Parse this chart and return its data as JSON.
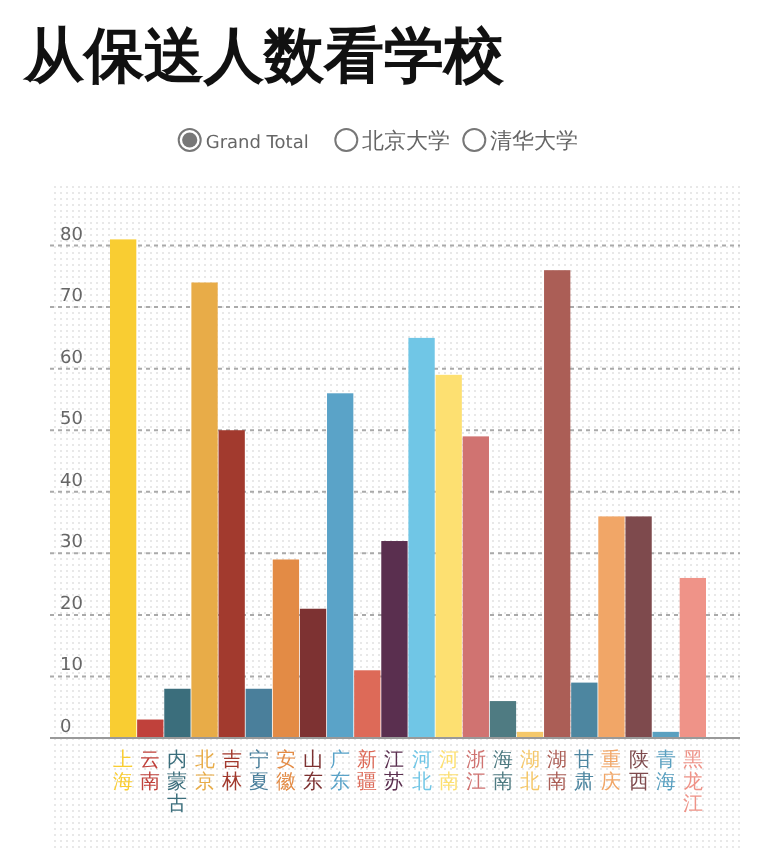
{
  "chart_data": {
    "type": "bar",
    "title": "从保送人数看学校",
    "categories": [
      "上海",
      "云南",
      "内蒙古",
      "北京",
      "吉林",
      "宁夏",
      "安徽",
      "山东",
      "广东",
      "新疆",
      "江苏",
      "河北",
      "河南",
      "浙江",
      "海南",
      "湖北",
      "湖南",
      "甘肃",
      "重庆",
      "陕西",
      "青海",
      "黑龙江"
    ],
    "series": [
      {
        "name": "Grand Total",
        "values": [
          81,
          3,
          8,
          74,
          50,
          8,
          29,
          21,
          56,
          11,
          32,
          65,
          59,
          49,
          6,
          1,
          76,
          9,
          36,
          36,
          1,
          26
        ]
      }
    ],
    "colors": [
      "#f9cd32",
      "#c0413b",
      "#3b6e7c",
      "#e8ac48",
      "#a23a2e",
      "#4a7f9b",
      "#e38b45",
      "#7d3232",
      "#5aa3c8",
      "#dd6a58",
      "#5a2f4f",
      "#70c6e6",
      "#fde071",
      "#d07371",
      "#4f7b82",
      "#f5c86a",
      "#ab5e56",
      "#4d86a0",
      "#f1a667",
      "#7e4a4d",
      "#5aa0c0",
      "#ef9388"
    ],
    "annotations": [
      "北京大学",
      "清华大学"
    ],
    "ylim": [
      0,
      90
    ],
    "yticks": [
      0,
      10,
      20,
      30,
      40,
      50,
      60,
      70,
      80
    ],
    "grid": "y",
    "legend": "top"
  }
}
